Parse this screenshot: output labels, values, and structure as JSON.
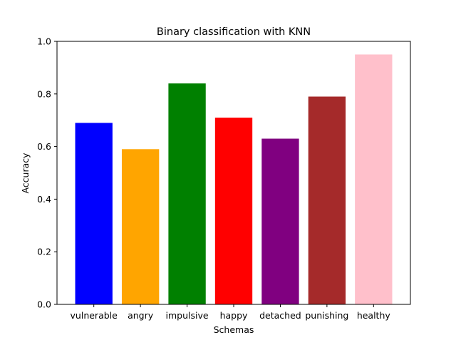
{
  "chart_data": {
    "type": "bar",
    "title": "Binary classification with KNN",
    "xlabel": "Schemas",
    "ylabel": "Accuracy",
    "categories": [
      "vulnerable",
      "angry",
      "impulsive",
      "happy",
      "detached",
      "punishing",
      "healthy"
    ],
    "values": [
      0.69,
      0.59,
      0.84,
      0.71,
      0.63,
      0.79,
      0.95
    ],
    "colors": [
      "#0000ff",
      "#ffa500",
      "#008000",
      "#ff0000",
      "#800080",
      "#a52a2a",
      "#ffc0cb"
    ],
    "ylim": [
      0,
      1.0
    ],
    "yticks": [
      "0.0",
      "0.2",
      "0.4",
      "0.6",
      "0.8",
      "1.0"
    ],
    "grid": false,
    "legend": "none"
  }
}
